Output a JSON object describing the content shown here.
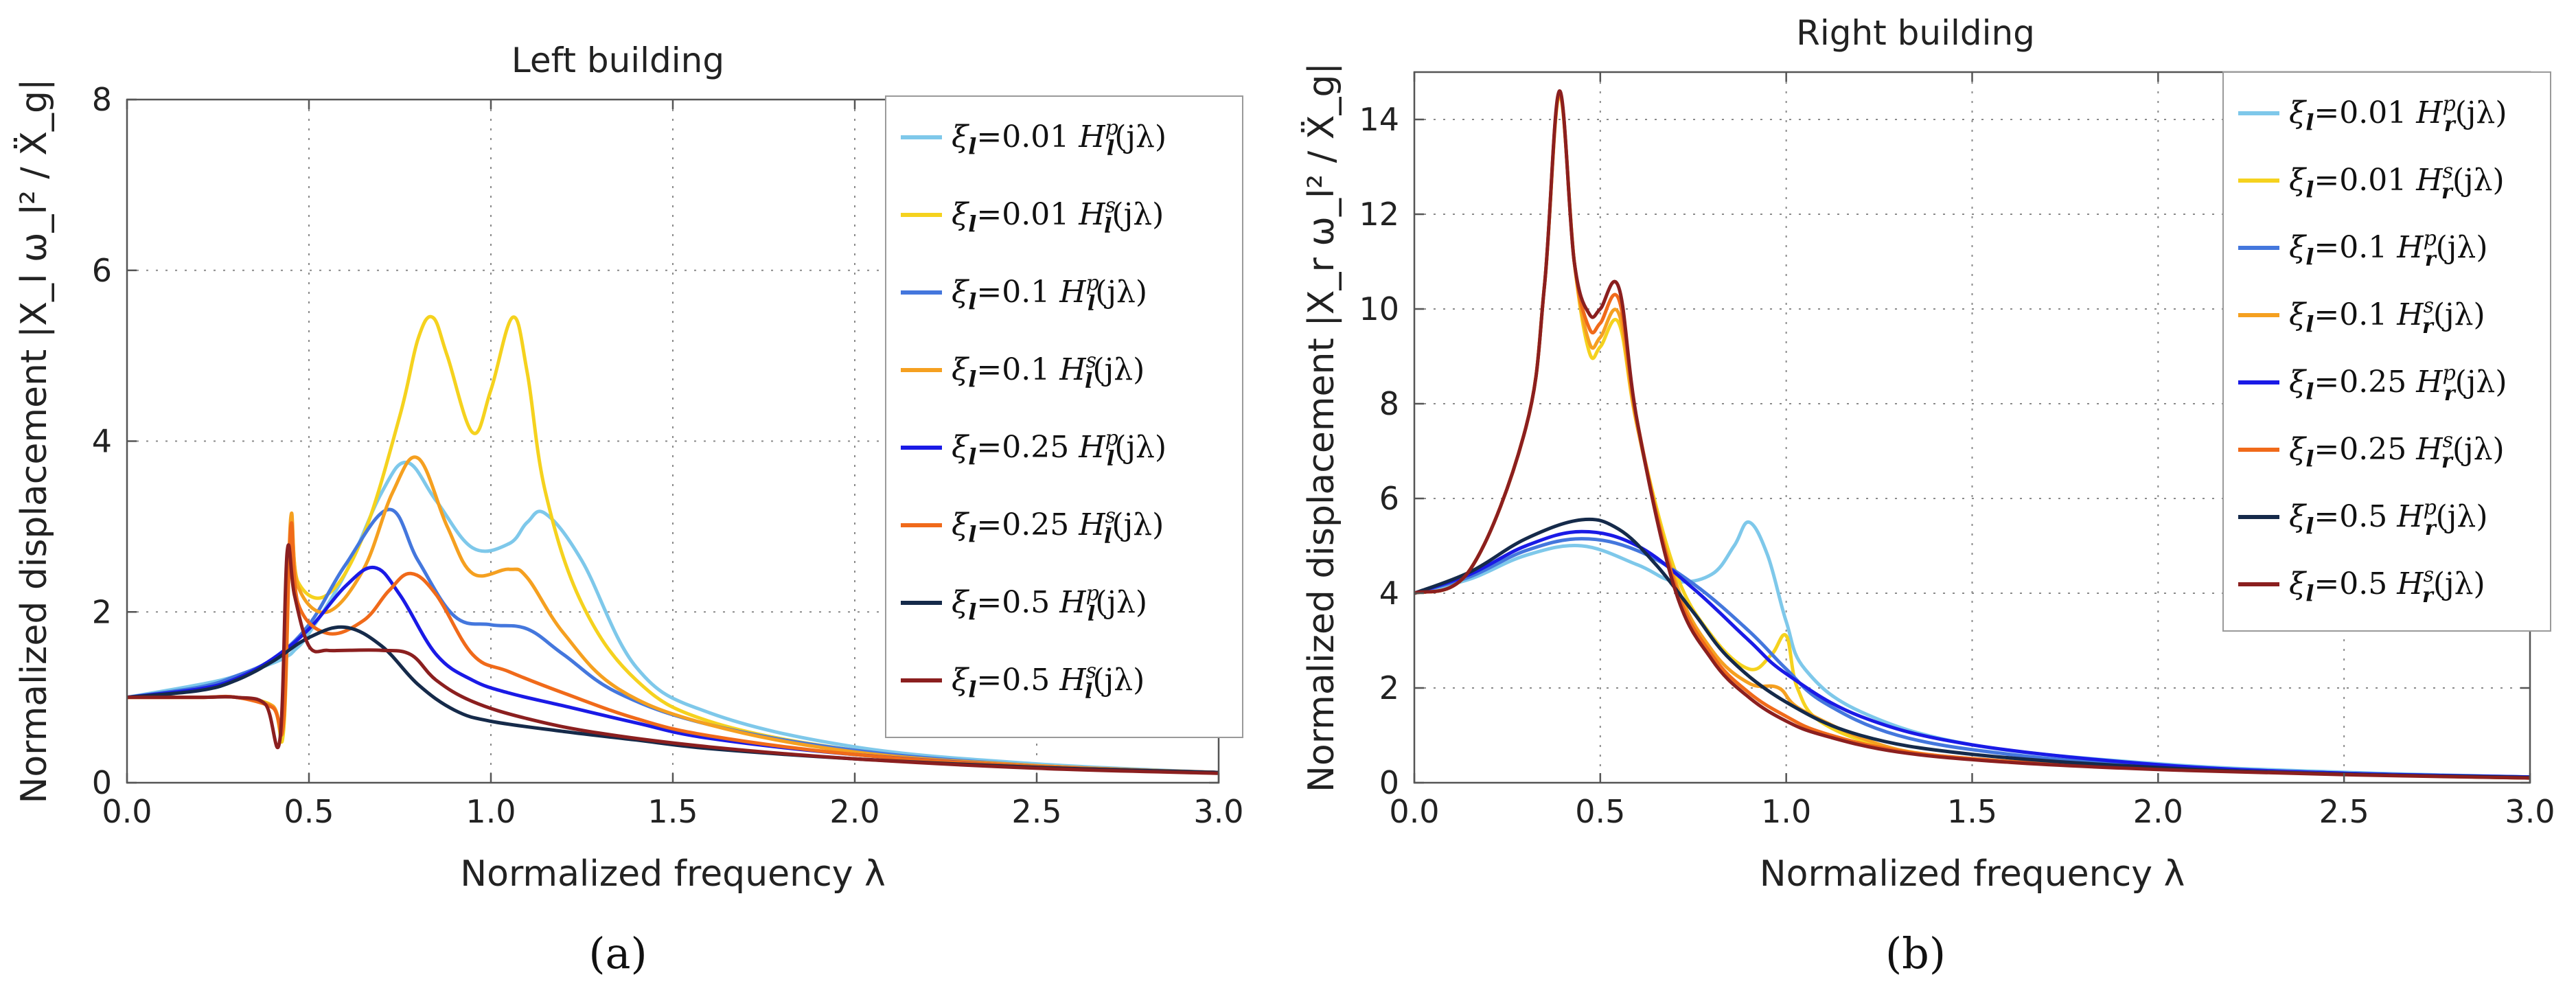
{
  "panel_labels": [
    "(a)",
    "(b)"
  ],
  "chart_data": [
    {
      "type": "line",
      "title": "Left building",
      "xlabel": "Normalized frequency λ",
      "ylabel": "Normalized displacement |X_l ω_l² / Ẍ_g|",
      "xlim": [
        0,
        3.0
      ],
      "ylim": [
        0,
        8
      ],
      "xticks": [
        "0.0",
        "0.5",
        "1.0",
        "1.5",
        "2.0",
        "2.5",
        "3.0"
      ],
      "yticks": [
        "0",
        "2",
        "4",
        "6",
        "8"
      ],
      "grid": true,
      "legend_position": "top-right",
      "series": [
        {
          "name": "ξ_l=0.01 H_l^p(jλ)",
          "color": "#7ec8ea",
          "x": [
            0,
            0.2,
            0.3,
            0.4,
            0.44,
            0.46,
            0.5,
            0.6,
            0.7,
            0.77,
            0.85,
            0.95,
            1.05,
            1.1,
            1.15,
            1.25,
            1.4,
            1.6,
            2.0,
            2.5,
            3.0
          ],
          "y": [
            1.0,
            1.15,
            1.25,
            1.4,
            1.48,
            1.55,
            1.75,
            2.45,
            3.4,
            3.75,
            3.3,
            2.75,
            2.8,
            3.05,
            3.15,
            2.6,
            1.35,
            0.82,
            0.42,
            0.22,
            0.12
          ]
        },
        {
          "name": "ξ_l=0.01 H_l^s(jλ)",
          "color": "#f5d21e",
          "x": [
            0,
            0.2,
            0.3,
            0.4,
            0.43,
            0.45,
            0.47,
            0.55,
            0.65,
            0.75,
            0.8,
            0.84,
            0.88,
            0.95,
            1.0,
            1.06,
            1.1,
            1.15,
            1.25,
            1.4,
            1.6,
            2.0,
            2.5,
            3.0
          ],
          "y": [
            1.0,
            1.0,
            1.0,
            0.9,
            0.6,
            3.0,
            2.35,
            2.2,
            2.9,
            4.3,
            5.2,
            5.45,
            5.0,
            4.1,
            4.6,
            5.45,
            4.8,
            3.4,
            2.1,
            1.2,
            0.72,
            0.38,
            0.2,
            0.12
          ]
        },
        {
          "name": "ξ_l=0.1 H_l^p(jλ)",
          "color": "#4477dd",
          "x": [
            0,
            0.2,
            0.3,
            0.4,
            0.5,
            0.6,
            0.72,
            0.8,
            0.9,
            1.0,
            1.1,
            1.2,
            1.35,
            1.6,
            2.0,
            2.5,
            3.0
          ],
          "y": [
            1.0,
            1.12,
            1.25,
            1.45,
            1.85,
            2.55,
            3.2,
            2.6,
            1.95,
            1.85,
            1.8,
            1.5,
            1.05,
            0.68,
            0.38,
            0.2,
            0.12
          ]
        },
        {
          "name": "ξ_l=0.1 H_l^s(jλ)",
          "color": "#f5a020",
          "x": [
            0,
            0.2,
            0.3,
            0.4,
            0.43,
            0.45,
            0.47,
            0.55,
            0.65,
            0.73,
            0.8,
            0.88,
            0.95,
            1.05,
            1.1,
            1.2,
            1.35,
            1.6,
            2.0,
            2.5,
            3.0
          ],
          "y": [
            1.0,
            1.0,
            1.0,
            0.9,
            0.7,
            3.1,
            2.3,
            2.0,
            2.5,
            3.4,
            3.8,
            3.0,
            2.45,
            2.5,
            2.4,
            1.75,
            1.1,
            0.68,
            0.36,
            0.2,
            0.12
          ]
        },
        {
          "name": "ξ_l=0.25 H_l^p(jλ)",
          "color": "#1a1ae6",
          "x": [
            0,
            0.2,
            0.3,
            0.4,
            0.5,
            0.6,
            0.68,
            0.75,
            0.85,
            0.95,
            1.05,
            1.2,
            1.4,
            1.6,
            2.0,
            2.5,
            3.0
          ],
          "y": [
            1.0,
            1.1,
            1.22,
            1.45,
            1.8,
            2.3,
            2.52,
            2.2,
            1.5,
            1.2,
            1.05,
            0.9,
            0.7,
            0.52,
            0.33,
            0.19,
            0.12
          ]
        },
        {
          "name": "ξ_l=0.25 H_l^s(jλ)",
          "color": "#f06a1a",
          "x": [
            0,
            0.2,
            0.3,
            0.4,
            0.43,
            0.45,
            0.47,
            0.55,
            0.65,
            0.72,
            0.78,
            0.85,
            0.95,
            1.05,
            1.2,
            1.4,
            1.6,
            2.0,
            2.5,
            3.0
          ],
          "y": [
            1.0,
            1.0,
            1.0,
            0.88,
            0.7,
            3.0,
            2.1,
            1.75,
            1.9,
            2.25,
            2.45,
            2.2,
            1.5,
            1.3,
            1.05,
            0.75,
            0.55,
            0.33,
            0.19,
            0.12
          ]
        },
        {
          "name": "ξ_l=0.5 H_l^p(jλ)",
          "color": "#152a4a",
          "x": [
            0,
            0.2,
            0.3,
            0.4,
            0.5,
            0.6,
            0.7,
            0.8,
            0.9,
            1.0,
            1.2,
            1.4,
            1.6,
            2.0,
            2.5,
            3.0
          ],
          "y": [
            1.0,
            1.08,
            1.2,
            1.42,
            1.7,
            1.82,
            1.6,
            1.15,
            0.85,
            0.72,
            0.6,
            0.5,
            0.4,
            0.28,
            0.18,
            0.12
          ]
        },
        {
          "name": "ξ_l=0.5 H_l^s(jλ)",
          "color": "#8b1f1f",
          "x": [
            0,
            0.2,
            0.3,
            0.38,
            0.42,
            0.44,
            0.46,
            0.5,
            0.55,
            0.6,
            0.7,
            0.78,
            0.85,
            0.95,
            1.1,
            1.3,
            1.6,
            2.0,
            2.5,
            3.0
          ],
          "y": [
            1.0,
            1.0,
            1.0,
            0.92,
            0.5,
            2.7,
            2.2,
            1.6,
            1.55,
            1.55,
            1.55,
            1.5,
            1.2,
            0.95,
            0.75,
            0.58,
            0.42,
            0.28,
            0.17,
            0.11
          ]
        }
      ]
    },
    {
      "type": "line",
      "title": "Right building",
      "xlabel": "Normalized frequency λ",
      "ylabel": "Normalized displacement |X_r ω_l² / Ẍ_g|",
      "xlim": [
        0,
        3.0
      ],
      "ylim": [
        0,
        15
      ],
      "xticks": [
        "0.0",
        "0.5",
        "1.0",
        "1.5",
        "2.0",
        "2.5",
        "3.0"
      ],
      "yticks": [
        "0",
        "2",
        "4",
        "6",
        "8",
        "10",
        "12",
        "14"
      ],
      "grid": true,
      "legend_position": "top-right",
      "series": [
        {
          "name": "ξ_l=0.01 H_r^p(jλ)",
          "color": "#7ec8ea",
          "x": [
            0,
            0.15,
            0.3,
            0.45,
            0.6,
            0.7,
            0.8,
            0.86,
            0.9,
            0.95,
            1.0,
            1.05,
            1.2,
            1.5,
            2.0,
            2.5,
            3.0
          ],
          "y": [
            4.0,
            4.3,
            4.8,
            5.0,
            4.6,
            4.25,
            4.4,
            5.0,
            5.5,
            4.8,
            3.4,
            2.4,
            1.5,
            0.8,
            0.4,
            0.22,
            0.12
          ]
        },
        {
          "name": "ξ_l=0.01 H_r^s(jλ)",
          "color": "#f5d21e",
          "x": [
            0,
            0.15,
            0.3,
            0.35,
            0.39,
            0.43,
            0.47,
            0.5,
            0.55,
            0.6,
            0.7,
            0.8,
            0.9,
            0.96,
            1.0,
            1.03,
            1.1,
            1.3,
            1.6,
            2.0,
            2.5,
            3.0
          ],
          "y": [
            4.0,
            4.5,
            7.5,
            10.5,
            14.5,
            11.0,
            9.1,
            9.2,
            9.7,
            7.5,
            4.5,
            3.1,
            2.4,
            2.7,
            3.1,
            2.0,
            1.25,
            0.7,
            0.45,
            0.3,
            0.18,
            0.1
          ]
        },
        {
          "name": "ξ_l=0.1 H_r^p(jλ)",
          "color": "#4477dd",
          "x": [
            0,
            0.15,
            0.3,
            0.45,
            0.6,
            0.75,
            0.9,
            1.0,
            1.1,
            1.3,
            1.6,
            2.0,
            2.5,
            3.0
          ],
          "y": [
            4.0,
            4.35,
            4.9,
            5.15,
            4.9,
            4.2,
            3.2,
            2.4,
            1.7,
            1.0,
            0.6,
            0.35,
            0.2,
            0.12
          ]
        },
        {
          "name": "ξ_l=0.1 H_r^s(jλ)",
          "color": "#f5a020",
          "x": [
            0,
            0.15,
            0.3,
            0.35,
            0.39,
            0.43,
            0.47,
            0.5,
            0.55,
            0.6,
            0.7,
            0.8,
            0.9,
            0.98,
            1.05,
            1.3,
            1.6,
            2.0,
            2.5,
            3.0
          ],
          "y": [
            4.0,
            4.5,
            7.5,
            10.5,
            14.55,
            11.0,
            9.3,
            9.4,
            9.9,
            7.5,
            4.3,
            2.8,
            2.1,
            2.0,
            1.5,
            0.7,
            0.45,
            0.3,
            0.18,
            0.1
          ]
        },
        {
          "name": "ξ_l=0.25 H_r^p(jλ)",
          "color": "#1a1ae6",
          "x": [
            0,
            0.15,
            0.3,
            0.45,
            0.6,
            0.75,
            0.9,
            1.0,
            1.2,
            1.5,
            2.0,
            2.5,
            3.0
          ],
          "y": [
            4.0,
            4.4,
            5.0,
            5.3,
            5.0,
            4.1,
            3.0,
            2.3,
            1.4,
            0.8,
            0.38,
            0.2,
            0.12
          ]
        },
        {
          "name": "ξ_l=0.25 H_r^s(jλ)",
          "color": "#f06a1a",
          "x": [
            0,
            0.15,
            0.3,
            0.35,
            0.39,
            0.43,
            0.47,
            0.5,
            0.55,
            0.6,
            0.7,
            0.8,
            0.9,
            1.0,
            1.1,
            1.3,
            1.6,
            2.0,
            2.5,
            3.0
          ],
          "y": [
            4.0,
            4.5,
            7.5,
            10.5,
            14.55,
            11.0,
            9.6,
            9.7,
            10.2,
            7.6,
            4.2,
            2.7,
            1.9,
            1.4,
            1.05,
            0.68,
            0.45,
            0.3,
            0.18,
            0.1
          ]
        },
        {
          "name": "ξ_l=0.5 H_r^p(jλ)",
          "color": "#152a4a",
          "x": [
            0,
            0.15,
            0.3,
            0.45,
            0.55,
            0.65,
            0.75,
            0.85,
            1.0,
            1.2,
            1.5,
            2.0,
            2.5,
            3.0
          ],
          "y": [
            4.0,
            4.45,
            5.15,
            5.55,
            5.35,
            4.6,
            3.6,
            2.6,
            1.7,
            1.0,
            0.6,
            0.32,
            0.18,
            0.11
          ]
        },
        {
          "name": "ξ_l=0.5 H_r^s(jλ)",
          "color": "#8b1f1f",
          "x": [
            0,
            0.15,
            0.3,
            0.35,
            0.39,
            0.43,
            0.47,
            0.5,
            0.55,
            0.6,
            0.7,
            0.8,
            0.9,
            1.0,
            1.1,
            1.3,
            1.6,
            2.0,
            2.5,
            3.0
          ],
          "y": [
            4.0,
            4.5,
            7.5,
            10.5,
            14.6,
            11.0,
            9.9,
            10.0,
            10.45,
            7.6,
            4.1,
            2.6,
            1.8,
            1.3,
            1.0,
            0.65,
            0.43,
            0.28,
            0.17,
            0.1
          ]
        }
      ]
    }
  ]
}
